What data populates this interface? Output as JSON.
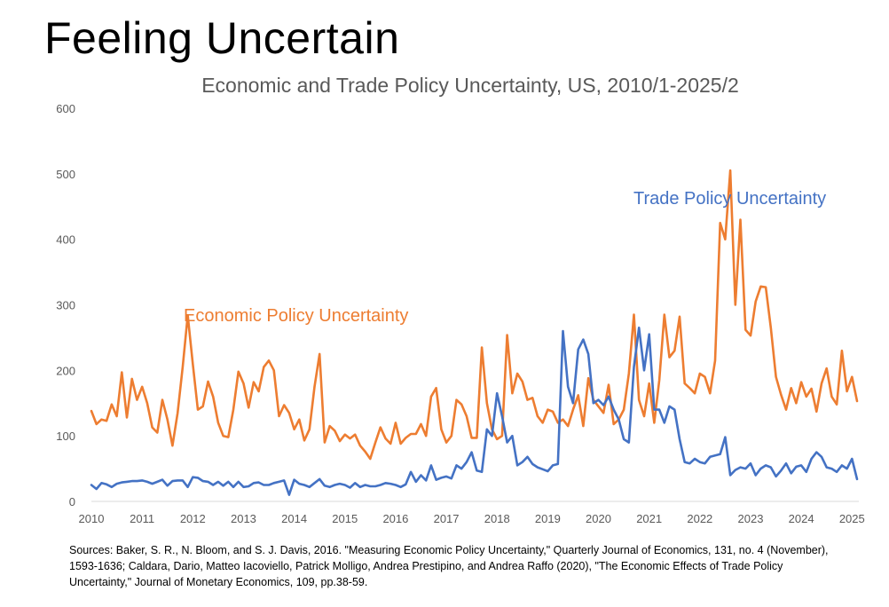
{
  "page": {
    "title": "Feeling Uncertain",
    "sources": [
      "Sources: Baker, S. R., N. Bloom, and S. J. Davis, 2016. \"Measuring Economic Policy Uncertainty,\" Quarterly Journal of Economics, 131, no. 4 (November),",
      "1593-1636; Caldara, Dario, Matteo Iacoviello, Patrick Molligo, Andrea Prestipino, and Andrea Raffo (2020), \"The Economic Effects of Trade Policy",
      "Uncertainty,\" Journal of Monetary Economics, 109, pp.38-59."
    ]
  },
  "chart_data": {
    "type": "line",
    "title": "Economic and Trade Policy Uncertainty, US, 2010/1-2025/2",
    "xlabel": "",
    "ylabel": "",
    "xlim": [
      2010.0,
      2025.1
    ],
    "ylim": [
      0,
      600
    ],
    "yticks": [
      0,
      100,
      200,
      300,
      400,
      500,
      600
    ],
    "xticks": [
      2010,
      2011,
      2012,
      2013,
      2014,
      2015,
      2016,
      2017,
      2018,
      2019,
      2020,
      2021,
      2022,
      2023,
      2024,
      2025
    ],
    "grid": false,
    "legend": "inline labels",
    "series": [
      {
        "name": "Economic Policy Uncertainty",
        "color": "#ED7D31",
        "points": [
          [
            2010.0,
            138
          ],
          [
            2010.1,
            118
          ],
          [
            2010.2,
            125
          ],
          [
            2010.3,
            123
          ],
          [
            2010.4,
            148
          ],
          [
            2010.5,
            130
          ],
          [
            2010.6,
            197
          ],
          [
            2010.7,
            128
          ],
          [
            2010.8,
            187
          ],
          [
            2010.9,
            155
          ],
          [
            2011.0,
            175
          ],
          [
            2011.1,
            150
          ],
          [
            2011.2,
            113
          ],
          [
            2011.3,
            105
          ],
          [
            2011.4,
            155
          ],
          [
            2011.5,
            125
          ],
          [
            2011.6,
            85
          ],
          [
            2011.7,
            135
          ],
          [
            2011.8,
            205
          ],
          [
            2011.9,
            284
          ],
          [
            2012.0,
            210
          ],
          [
            2012.1,
            140
          ],
          [
            2012.2,
            145
          ],
          [
            2012.3,
            183
          ],
          [
            2012.4,
            160
          ],
          [
            2012.5,
            120
          ],
          [
            2012.6,
            100
          ],
          [
            2012.7,
            98
          ],
          [
            2012.8,
            140
          ],
          [
            2012.9,
            198
          ],
          [
            2013.0,
            180
          ],
          [
            2013.1,
            143
          ],
          [
            2013.2,
            182
          ],
          [
            2013.3,
            168
          ],
          [
            2013.4,
            205
          ],
          [
            2013.5,
            215
          ],
          [
            2013.6,
            200
          ],
          [
            2013.7,
            130
          ],
          [
            2013.8,
            147
          ],
          [
            2013.9,
            135
          ],
          [
            2014.0,
            110
          ],
          [
            2014.1,
            125
          ],
          [
            2014.2,
            93
          ],
          [
            2014.3,
            110
          ],
          [
            2014.4,
            175
          ],
          [
            2014.5,
            225
          ],
          [
            2014.6,
            90
          ],
          [
            2014.7,
            115
          ],
          [
            2014.8,
            108
          ],
          [
            2014.9,
            92
          ],
          [
            2015.0,
            102
          ],
          [
            2015.1,
            96
          ],
          [
            2015.2,
            102
          ],
          [
            2015.3,
            85
          ],
          [
            2015.4,
            76
          ],
          [
            2015.5,
            65
          ],
          [
            2015.6,
            90
          ],
          [
            2015.7,
            113
          ],
          [
            2015.8,
            96
          ],
          [
            2015.9,
            88
          ],
          [
            2016.0,
            120
          ],
          [
            2016.1,
            88
          ],
          [
            2016.2,
            97
          ],
          [
            2016.3,
            103
          ],
          [
            2016.4,
            103
          ],
          [
            2016.5,
            118
          ],
          [
            2016.6,
            100
          ],
          [
            2016.7,
            160
          ],
          [
            2016.8,
            173
          ],
          [
            2016.9,
            110
          ],
          [
            2017.0,
            90
          ],
          [
            2017.1,
            100
          ],
          [
            2017.2,
            155
          ],
          [
            2017.3,
            148
          ],
          [
            2017.4,
            130
          ],
          [
            2017.5,
            97
          ],
          [
            2017.6,
            97
          ],
          [
            2017.7,
            235
          ],
          [
            2017.8,
            150
          ],
          [
            2017.9,
            110
          ],
          [
            2018.0,
            95
          ],
          [
            2018.1,
            100
          ],
          [
            2018.2,
            254
          ],
          [
            2018.3,
            165
          ],
          [
            2018.4,
            195
          ],
          [
            2018.5,
            183
          ],
          [
            2018.6,
            155
          ],
          [
            2018.7,
            158
          ],
          [
            2018.8,
            130
          ],
          [
            2018.9,
            120
          ],
          [
            2019.0,
            140
          ],
          [
            2019.1,
            137
          ],
          [
            2019.2,
            120
          ],
          [
            2019.3,
            125
          ],
          [
            2019.4,
            115
          ],
          [
            2019.5,
            140
          ],
          [
            2019.6,
            162
          ],
          [
            2019.7,
            115
          ],
          [
            2019.8,
            188
          ],
          [
            2019.9,
            155
          ],
          [
            2020.0,
            145
          ],
          [
            2020.1,
            135
          ],
          [
            2020.2,
            178
          ],
          [
            2020.3,
            118
          ],
          [
            2020.4,
            125
          ],
          [
            2020.5,
            140
          ],
          [
            2020.6,
            195
          ],
          [
            2020.7,
            285
          ],
          [
            2020.8,
            155
          ],
          [
            2020.9,
            130
          ],
          [
            2021.0,
            180
          ],
          [
            2021.1,
            120
          ],
          [
            2021.2,
            185
          ],
          [
            2021.3,
            285
          ],
          [
            2021.4,
            220
          ],
          [
            2021.5,
            230
          ],
          [
            2021.6,
            282
          ],
          [
            2021.7,
            180
          ],
          [
            2021.8,
            173
          ],
          [
            2021.9,
            165
          ],
          [
            2022.0,
            195
          ],
          [
            2022.1,
            190
          ],
          [
            2022.2,
            165
          ],
          [
            2022.3,
            215
          ],
          [
            2022.4,
            425
          ],
          [
            2022.5,
            400
          ],
          [
            2022.6,
            505
          ],
          [
            2022.7,
            300
          ],
          [
            2022.8,
            430
          ],
          [
            2022.9,
            262
          ],
          [
            2023.0,
            253
          ],
          [
            2023.1,
            305
          ],
          [
            2023.2,
            328
          ],
          [
            2023.3,
            327
          ],
          [
            2023.4,
            265
          ],
          [
            2023.5,
            190
          ],
          [
            2023.6,
            163
          ],
          [
            2023.7,
            140
          ],
          [
            2023.8,
            173
          ],
          [
            2023.9,
            150
          ],
          [
            2024.0,
            182
          ],
          [
            2024.1,
            160
          ],
          [
            2024.2,
            172
          ],
          [
            2024.3,
            137
          ],
          [
            2024.4,
            180
          ],
          [
            2024.5,
            203
          ],
          [
            2024.6,
            160
          ],
          [
            2024.7,
            148
          ],
          [
            2024.8,
            230
          ],
          [
            2024.9,
            168
          ],
          [
            2025.0,
            190
          ],
          [
            2025.1,
            153
          ]
        ]
      },
      {
        "name": "Trade Policy Uncertainty",
        "color": "#4472C4",
        "points": [
          [
            2010.0,
            25
          ],
          [
            2010.1,
            19
          ],
          [
            2010.2,
            28
          ],
          [
            2010.3,
            26
          ],
          [
            2010.4,
            22
          ],
          [
            2010.5,
            27
          ],
          [
            2010.6,
            29
          ],
          [
            2010.7,
            30
          ],
          [
            2010.8,
            31
          ],
          [
            2010.9,
            31
          ],
          [
            2011.0,
            32
          ],
          [
            2011.1,
            30
          ],
          [
            2011.2,
            27
          ],
          [
            2011.3,
            30
          ],
          [
            2011.4,
            33
          ],
          [
            2011.5,
            24
          ],
          [
            2011.6,
            31
          ],
          [
            2011.7,
            32
          ],
          [
            2011.8,
            32
          ],
          [
            2011.9,
            22
          ],
          [
            2012.0,
            37
          ],
          [
            2012.1,
            36
          ],
          [
            2012.2,
            31
          ],
          [
            2012.3,
            30
          ],
          [
            2012.4,
            25
          ],
          [
            2012.5,
            30
          ],
          [
            2012.6,
            24
          ],
          [
            2012.7,
            30
          ],
          [
            2012.8,
            22
          ],
          [
            2012.9,
            30
          ],
          [
            2013.0,
            22
          ],
          [
            2013.1,
            23
          ],
          [
            2013.2,
            28
          ],
          [
            2013.3,
            29
          ],
          [
            2013.4,
            25
          ],
          [
            2013.5,
            25
          ],
          [
            2013.6,
            28
          ],
          [
            2013.7,
            30
          ],
          [
            2013.8,
            32
          ],
          [
            2013.9,
            10
          ],
          [
            2014.0,
            33
          ],
          [
            2014.1,
            27
          ],
          [
            2014.2,
            25
          ],
          [
            2014.3,
            22
          ],
          [
            2014.4,
            28
          ],
          [
            2014.5,
            34
          ],
          [
            2014.6,
            24
          ],
          [
            2014.7,
            22
          ],
          [
            2014.8,
            25
          ],
          [
            2014.9,
            27
          ],
          [
            2015.0,
            25
          ],
          [
            2015.1,
            21
          ],
          [
            2015.2,
            28
          ],
          [
            2015.3,
            22
          ],
          [
            2015.4,
            25
          ],
          [
            2015.5,
            23
          ],
          [
            2015.6,
            23
          ],
          [
            2015.7,
            25
          ],
          [
            2015.8,
            28
          ],
          [
            2015.9,
            27
          ],
          [
            2016.0,
            25
          ],
          [
            2016.1,
            22
          ],
          [
            2016.2,
            26
          ],
          [
            2016.3,
            45
          ],
          [
            2016.4,
            30
          ],
          [
            2016.5,
            40
          ],
          [
            2016.6,
            32
          ],
          [
            2016.7,
            55
          ],
          [
            2016.8,
            33
          ],
          [
            2016.9,
            36
          ],
          [
            2017.0,
            38
          ],
          [
            2017.1,
            35
          ],
          [
            2017.2,
            55
          ],
          [
            2017.3,
            50
          ],
          [
            2017.4,
            60
          ],
          [
            2017.5,
            75
          ],
          [
            2017.6,
            47
          ],
          [
            2017.7,
            45
          ],
          [
            2017.8,
            110
          ],
          [
            2017.9,
            100
          ],
          [
            2018.0,
            165
          ],
          [
            2018.1,
            130
          ],
          [
            2018.2,
            90
          ],
          [
            2018.3,
            100
          ],
          [
            2018.4,
            55
          ],
          [
            2018.5,
            60
          ],
          [
            2018.6,
            68
          ],
          [
            2018.7,
            57
          ],
          [
            2018.8,
            52
          ],
          [
            2018.9,
            49
          ],
          [
            2019.0,
            46
          ],
          [
            2019.1,
            55
          ],
          [
            2019.2,
            57
          ],
          [
            2019.3,
            260
          ],
          [
            2019.4,
            175
          ],
          [
            2019.5,
            150
          ],
          [
            2019.6,
            232
          ],
          [
            2019.7,
            247
          ],
          [
            2019.8,
            225
          ],
          [
            2019.9,
            150
          ],
          [
            2020.0,
            155
          ],
          [
            2020.1,
            147
          ],
          [
            2020.2,
            160
          ],
          [
            2020.3,
            140
          ],
          [
            2020.4,
            125
          ],
          [
            2020.5,
            95
          ],
          [
            2020.6,
            90
          ],
          [
            2020.7,
            205
          ],
          [
            2020.8,
            265
          ],
          [
            2020.9,
            200
          ],
          [
            2021.0,
            255
          ],
          [
            2021.1,
            140
          ],
          [
            2021.2,
            140
          ],
          [
            2021.3,
            120
          ],
          [
            2021.4,
            145
          ],
          [
            2021.5,
            140
          ],
          [
            2021.6,
            95
          ],
          [
            2021.7,
            60
          ],
          [
            2021.8,
            58
          ],
          [
            2021.9,
            65
          ],
          [
            2022.0,
            60
          ],
          [
            2022.1,
            58
          ],
          [
            2022.2,
            68
          ],
          [
            2022.3,
            70
          ],
          [
            2022.4,
            72
          ],
          [
            2022.5,
            98
          ],
          [
            2022.6,
            40
          ],
          [
            2022.7,
            48
          ],
          [
            2022.8,
            52
          ],
          [
            2022.9,
            50
          ],
          [
            2023.0,
            58
          ],
          [
            2023.1,
            40
          ],
          [
            2023.2,
            50
          ],
          [
            2023.3,
            55
          ],
          [
            2023.4,
            52
          ],
          [
            2023.5,
            38
          ],
          [
            2023.6,
            47
          ],
          [
            2023.7,
            58
          ],
          [
            2023.8,
            43
          ],
          [
            2023.9,
            53
          ],
          [
            2024.0,
            55
          ],
          [
            2024.1,
            45
          ],
          [
            2024.2,
            65
          ],
          [
            2024.3,
            75
          ],
          [
            2024.4,
            68
          ],
          [
            2024.5,
            52
          ],
          [
            2024.6,
            50
          ],
          [
            2024.7,
            45
          ],
          [
            2024.8,
            55
          ],
          [
            2024.9,
            50
          ],
          [
            2025.0,
            65
          ],
          [
            2025.1,
            34
          ]
        ]
      }
    ]
  }
}
